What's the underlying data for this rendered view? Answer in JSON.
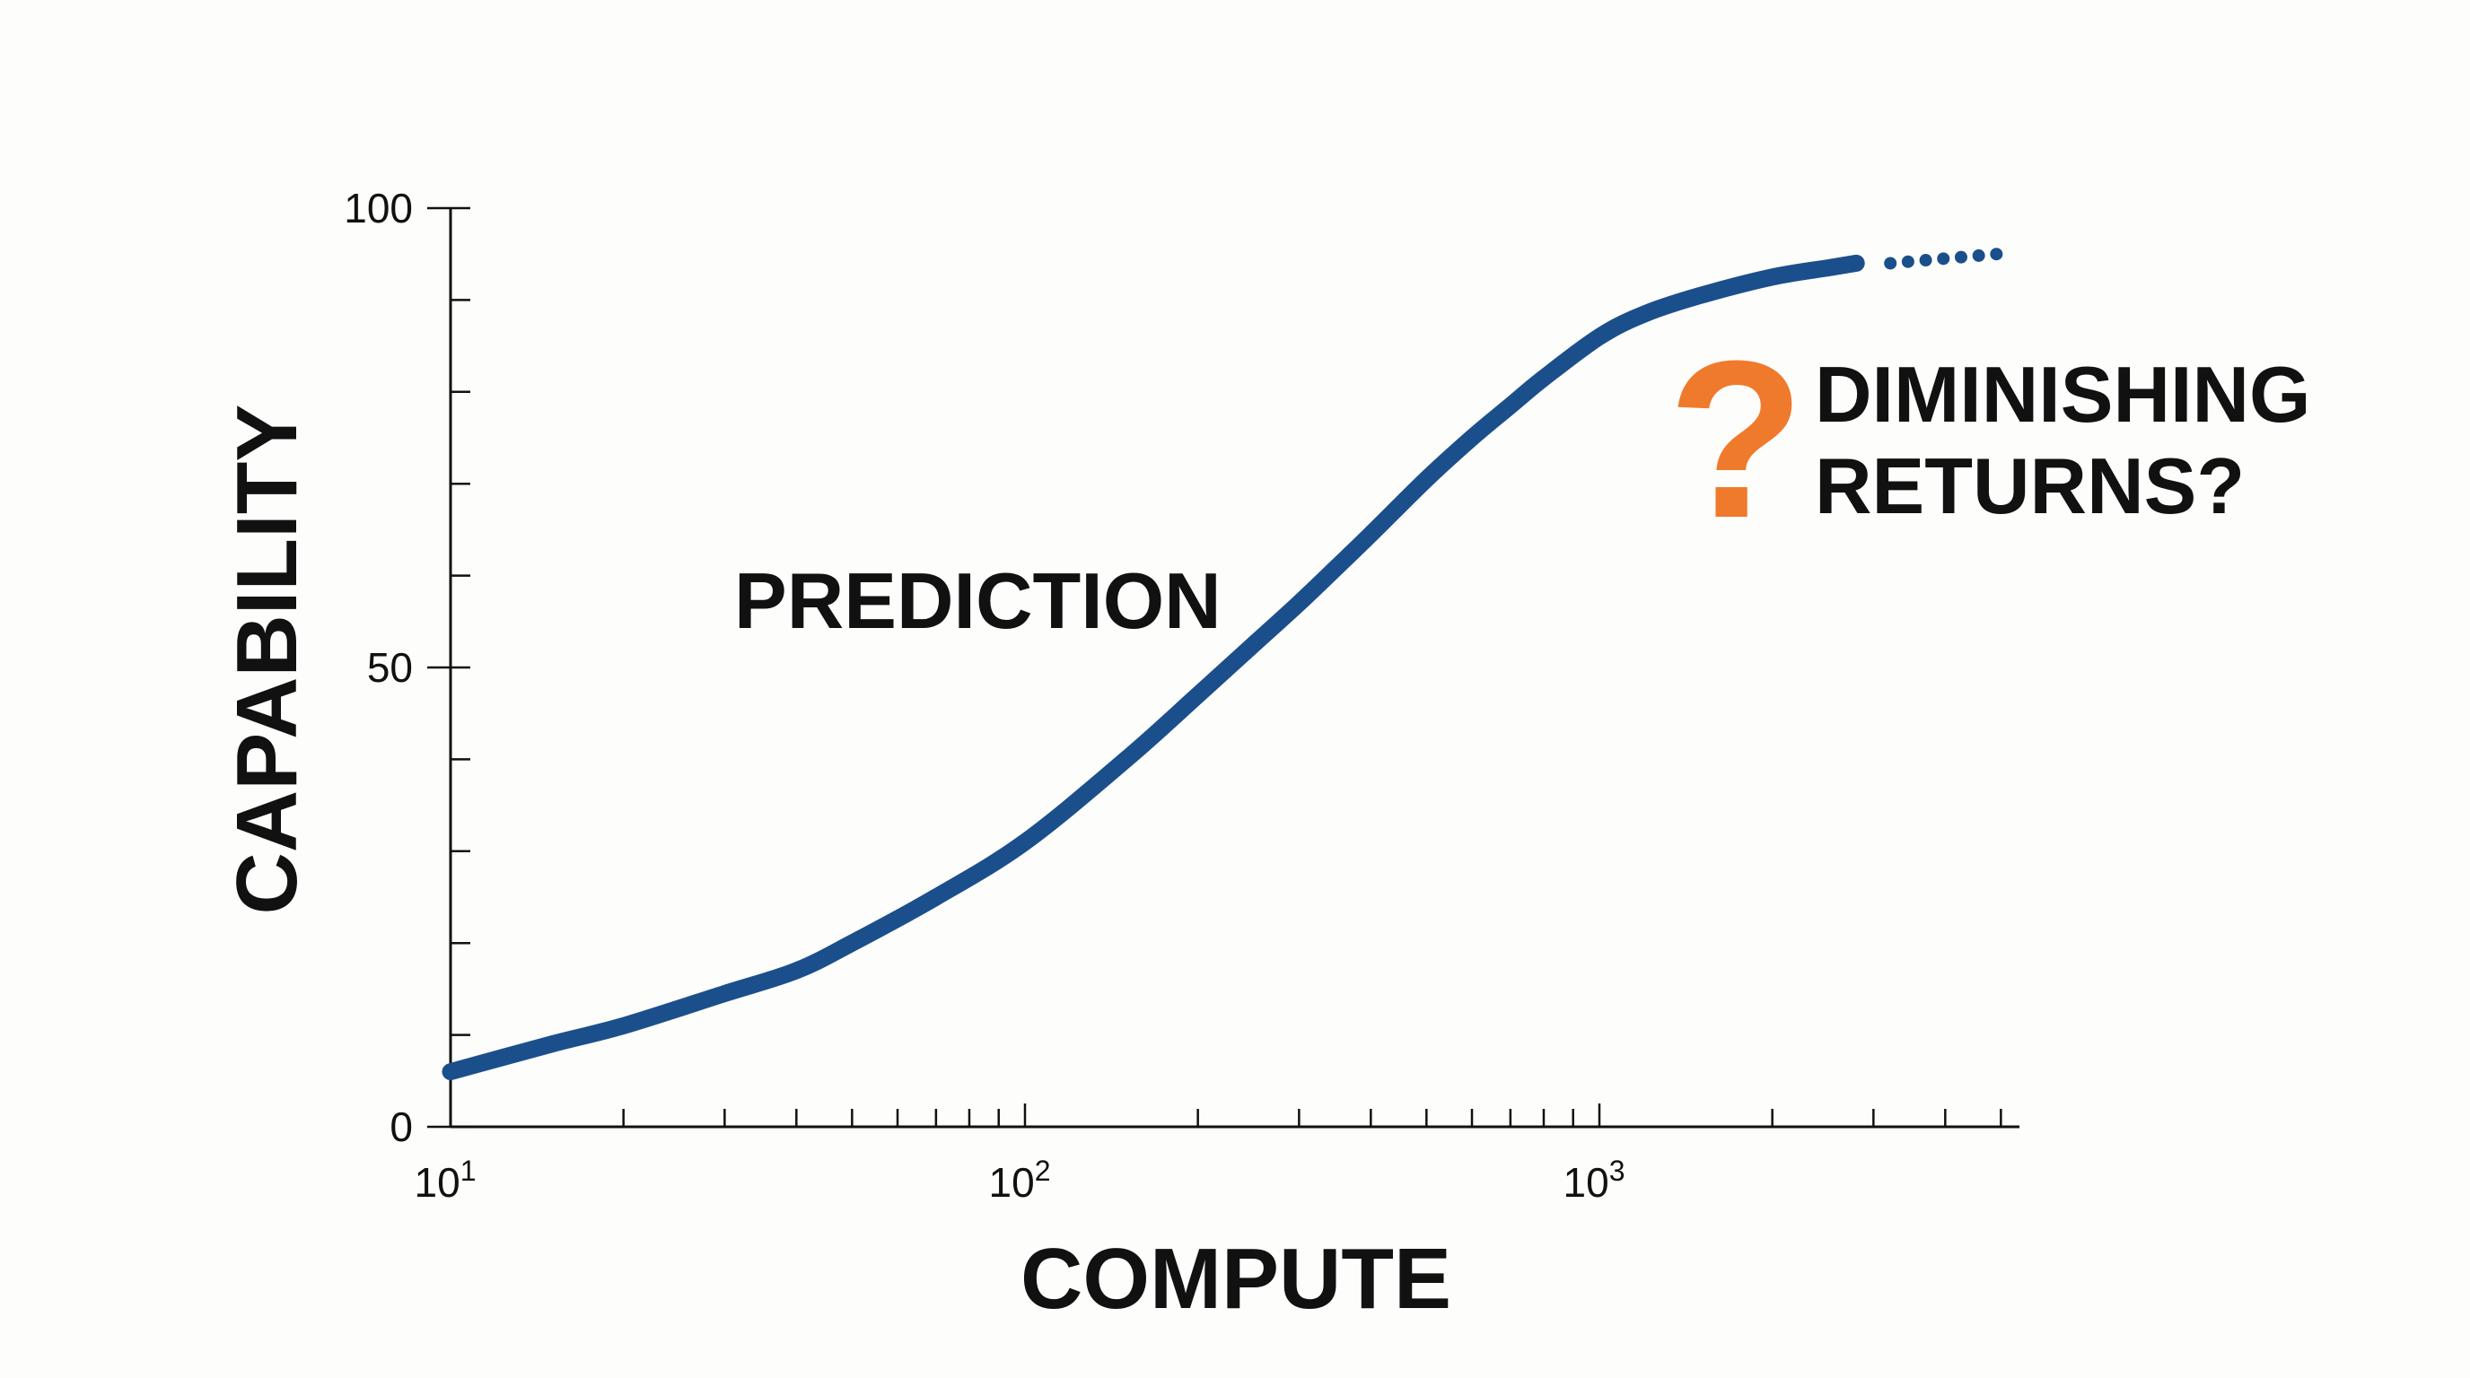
{
  "colors": {
    "curve": "#1b4f8c",
    "accent": "#f07a2c",
    "text": "#111111"
  },
  "chart_data": {
    "type": "line",
    "title": "",
    "xlabel": "COMPUTE",
    "ylabel": "CAPABILITY",
    "x_scale": "log",
    "xlim": [
      10,
      5000
    ],
    "ylim": [
      0,
      100
    ],
    "x_ticks": [
      {
        "value": 10,
        "base": "10",
        "exp": "1"
      },
      {
        "value": 100,
        "base": "10",
        "exp": "2"
      },
      {
        "value": 1000,
        "base": "10",
        "exp": "3"
      }
    ],
    "y_ticks": [
      {
        "value": 0,
        "label": "0"
      },
      {
        "value": 50,
        "label": "50"
      },
      {
        "value": 100,
        "label": "100"
      }
    ],
    "y_minor_step": 10,
    "grid": false,
    "series": [
      {
        "x": [
          10,
          15,
          20,
          30,
          40,
          50,
          70,
          100,
          150,
          200,
          250,
          300,
          350,
          400,
          500,
          600,
          700,
          800,
          1000,
          1200,
          1500,
          2000,
          2500,
          2800
        ],
        "y": [
          6,
          9,
          11,
          14.5,
          17,
          20,
          25,
          31,
          40,
          47,
          52.5,
          57,
          61,
          64.5,
          70.5,
          75,
          78.5,
          81.5,
          86,
          88.5,
          90.5,
          92.5,
          93.5,
          94
        ]
      }
    ],
    "extension": {
      "x": [
        2800,
        5000
      ],
      "y": [
        94,
        95
      ],
      "style": "dotted"
    },
    "annotations": [
      {
        "text": "PREDICTION",
        "x": 40,
        "y": 58
      },
      {
        "text": "?",
        "color_role": "accent"
      },
      {
        "lines": [
          "DIMINISHING",
          "RETURNS?"
        ]
      }
    ]
  }
}
